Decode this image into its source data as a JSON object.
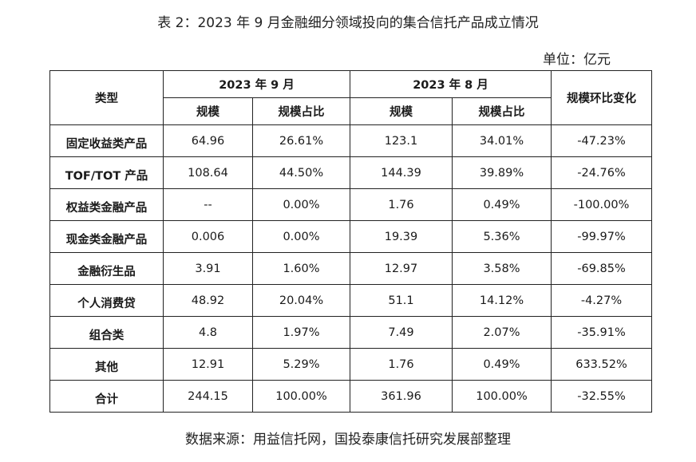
{
  "title": "表 2：2023 年 9 月金融细分领域投向的集合信托产品成立情况",
  "unit": "单位：亿元",
  "header": {
    "type": "类型",
    "period1": "2023 年 9 月",
    "period2": "2023 年 8 月",
    "change": "规模环比变化",
    "scale": "规模",
    "share": "规模占比"
  },
  "rows": [
    {
      "name": "固定收益类产品",
      "sep_scale": "64.96",
      "sep_share": "26.61%",
      "aug_scale": "123.1",
      "aug_share": "34.01%",
      "change": "-47.23%"
    },
    {
      "name": "TOF/TOT 产品",
      "sep_scale": "108.64",
      "sep_share": "44.50%",
      "aug_scale": "144.39",
      "aug_share": "39.89%",
      "change": "-24.76%"
    },
    {
      "name": "权益类金融产品",
      "sep_scale": "--",
      "sep_share": "0.00%",
      "aug_scale": "1.76",
      "aug_share": "0.49%",
      "change": "-100.00%"
    },
    {
      "name": "现金类金融产品",
      "sep_scale": "0.006",
      "sep_share": "0.00%",
      "aug_scale": "19.39",
      "aug_share": "5.36%",
      "change": "-99.97%"
    },
    {
      "name": "金融衍生品",
      "sep_scale": "3.91",
      "sep_share": "1.60%",
      "aug_scale": "12.97",
      "aug_share": "3.58%",
      "change": "-69.85%"
    },
    {
      "name": "个人消费贷",
      "sep_scale": "48.92",
      "sep_share": "20.04%",
      "aug_scale": "51.1",
      "aug_share": "14.12%",
      "change": "-4.27%"
    },
    {
      "name": "组合类",
      "sep_scale": "4.8",
      "sep_share": "1.97%",
      "aug_scale": "7.49",
      "aug_share": "2.07%",
      "change": "-35.91%"
    },
    {
      "name": "其他",
      "sep_scale": "12.91",
      "sep_share": "5.29%",
      "aug_scale": "1.76",
      "aug_share": "0.49%",
      "change": "633.52%"
    },
    {
      "name": "合计",
      "sep_scale": "244.15",
      "sep_share": "100.00%",
      "aug_scale": "361.96",
      "aug_share": "100.00%",
      "change": "-32.55%"
    }
  ],
  "source": "数据来源：用益信托网，国投泰康信托研究发展部整理"
}
